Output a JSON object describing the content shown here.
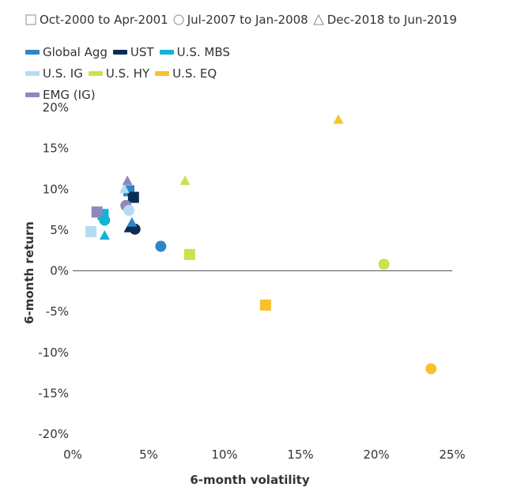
{
  "legend": {
    "periods": [
      {
        "label": "Oct-2000 to Apr-2001",
        "shape": "square"
      },
      {
        "label": "Jul-2007 to Jan-2008",
        "shape": "circle"
      },
      {
        "label": "Dec-2018 to Jun-2019",
        "shape": "triangle"
      }
    ],
    "series": [
      {
        "label": "Global Agg",
        "color": "#2e86c8"
      },
      {
        "label": "UST",
        "color": "#0a2d57"
      },
      {
        "label": "U.S. MBS",
        "color": "#13b3d3"
      },
      {
        "label": "U.S. IG",
        "color": "#b3dcf4"
      },
      {
        "label": "U.S. HY",
        "color": "#cfdf4e"
      },
      {
        "label": "U.S. EQ",
        "color": "#f8c12e"
      },
      {
        "label": "EMG (IG)",
        "color": "#8f88bf"
      }
    ]
  },
  "chart_data": {
    "type": "scatter",
    "title": "",
    "xlabel": "6-month volatility",
    "ylabel": "6-month return",
    "xlim": [
      0,
      25
    ],
    "ylim": [
      -20,
      20
    ],
    "x_ticks": [
      "0%",
      "5%",
      "10%",
      "15%",
      "20%",
      "25%"
    ],
    "y_ticks": [
      "20%",
      "15%",
      "10%",
      "5%",
      "0%",
      "-5%",
      "-10%",
      "-15%",
      "-20%"
    ],
    "x_tick_values": [
      0,
      5,
      10,
      15,
      20,
      25
    ],
    "y_tick_values": [
      20,
      15,
      10,
      5,
      0,
      -5,
      -10,
      -15,
      -20
    ],
    "points": [
      {
        "series": "U.S. IG",
        "period": "Oct-2000 to Apr-2001",
        "shape": "square",
        "x": 1.2,
        "y": 4.8,
        "color": "#b3dcf4"
      },
      {
        "series": "U.S. MBS",
        "period": "Oct-2000 to Apr-2001",
        "shape": "square",
        "x": 2.0,
        "y": 6.9,
        "color": "#13b3d3"
      },
      {
        "series": "EMG (IG)",
        "period": "Oct-2000 to Apr-2001",
        "shape": "square",
        "x": 1.6,
        "y": 7.2,
        "color": "#8f88bf"
      },
      {
        "series": "Global Agg",
        "period": "Oct-2000 to Apr-2001",
        "shape": "square",
        "x": 3.7,
        "y": 9.8,
        "color": "#2e86c8"
      },
      {
        "series": "UST",
        "period": "Oct-2000 to Apr-2001",
        "shape": "square",
        "x": 4.0,
        "y": 9.0,
        "color": "#0a2d57"
      },
      {
        "series": "U.S. HY",
        "period": "Oct-2000 to Apr-2001",
        "shape": "square",
        "x": 7.7,
        "y": 2.0,
        "color": "#cfdf4e"
      },
      {
        "series": "U.S. EQ",
        "period": "Oct-2000 to Apr-2001",
        "shape": "square",
        "x": 12.7,
        "y": -4.2,
        "color": "#f8c12e"
      },
      {
        "series": "U.S. MBS",
        "period": "Jul-2007 to Jan-2008",
        "shape": "circle",
        "x": 2.1,
        "y": 6.2,
        "color": "#13b3d3"
      },
      {
        "series": "EMG (IG)",
        "period": "Jul-2007 to Jan-2008",
        "shape": "circle",
        "x": 3.5,
        "y": 8.0,
        "color": "#8f88bf"
      },
      {
        "series": "U.S. IG",
        "period": "Jul-2007 to Jan-2008",
        "shape": "circle",
        "x": 3.7,
        "y": 7.4,
        "color": "#b3dcf4"
      },
      {
        "series": "UST",
        "period": "Jul-2007 to Jan-2008",
        "shape": "circle",
        "x": 4.1,
        "y": 5.1,
        "color": "#0a2d57"
      },
      {
        "series": "Global Agg",
        "period": "Jul-2007 to Jan-2008",
        "shape": "circle",
        "x": 5.8,
        "y": 3.0,
        "color": "#2e86c8"
      },
      {
        "series": "U.S. HY",
        "period": "Jul-2007 to Jan-2008",
        "shape": "circle",
        "x": 20.5,
        "y": 0.8,
        "color": "#cfdf4e"
      },
      {
        "series": "U.S. EQ",
        "period": "Jul-2007 to Jan-2008",
        "shape": "circle",
        "x": 23.6,
        "y": -12.0,
        "color": "#f8c12e"
      },
      {
        "series": "U.S. MBS",
        "period": "Dec-2018 to Jun-2019",
        "shape": "triangle",
        "x": 2.1,
        "y": 4.3,
        "color": "#13b3d3"
      },
      {
        "series": "U.S. IG",
        "period": "Dec-2018 to Jun-2019",
        "shape": "triangle",
        "x": 3.4,
        "y": 10.0,
        "color": "#b3dcf4"
      },
      {
        "series": "EMG (IG)",
        "period": "Dec-2018 to Jun-2019",
        "shape": "triangle",
        "x": 3.6,
        "y": 11.0,
        "color": "#8f88bf"
      },
      {
        "series": "UST",
        "period": "Dec-2018 to Jun-2019",
        "shape": "triangle",
        "x": 3.7,
        "y": 5.2,
        "color": "#0a2d57"
      },
      {
        "series": "Global Agg",
        "period": "Dec-2018 to Jun-2019",
        "shape": "triangle",
        "x": 3.9,
        "y": 5.9,
        "color": "#2e86c8"
      },
      {
        "series": "U.S. HY",
        "period": "Dec-2018 to Jun-2019",
        "shape": "triangle",
        "x": 7.4,
        "y": 11.0,
        "color": "#cfdf4e"
      },
      {
        "series": "U.S. EQ",
        "period": "Dec-2018 to Jun-2019",
        "shape": "triangle",
        "x": 17.5,
        "y": 18.5,
        "color": "#f8c12e"
      }
    ]
  }
}
